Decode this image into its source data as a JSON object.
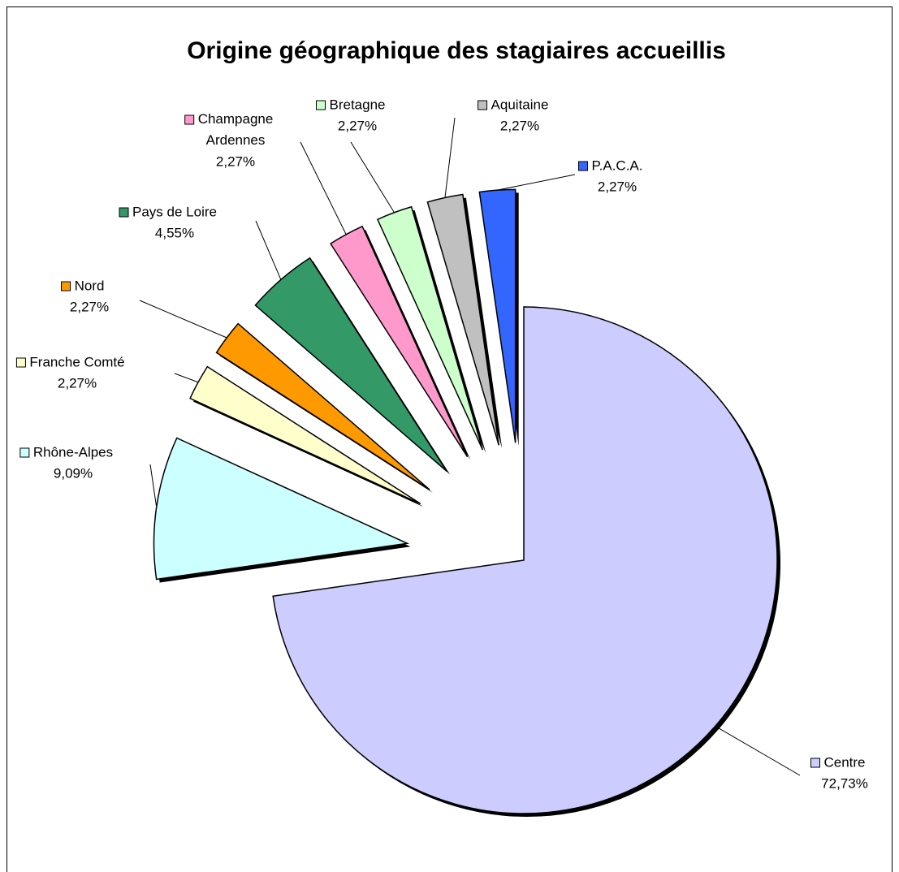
{
  "chart_data": {
    "type": "pie",
    "title": "Origine géographique des stagiaires accueillis",
    "categories": [
      "Centre",
      "Rhône-Alpes",
      "Franche Comté",
      "Nord",
      "Pays de Loire",
      "Champagne Ardennes",
      "Bretagne",
      "Aquitaine",
      "P.A.C.A."
    ],
    "values": [
      72.73,
      9.09,
      2.27,
      2.27,
      4.55,
      2.27,
      2.27,
      2.27,
      2.27
    ],
    "value_labels": [
      "72,73%",
      "9,09%",
      "2,27%",
      "2,27%",
      "4,55%",
      "2,27%",
      "2,27%",
      "2,27%",
      "2,27%"
    ],
    "colors": [
      "#ccccff",
      "#ccffff",
      "#ffffcc",
      "#ff9900",
      "#339966",
      "#ff99cc",
      "#ccffcc",
      "#c0c0c0",
      "#3366ff"
    ]
  }
}
